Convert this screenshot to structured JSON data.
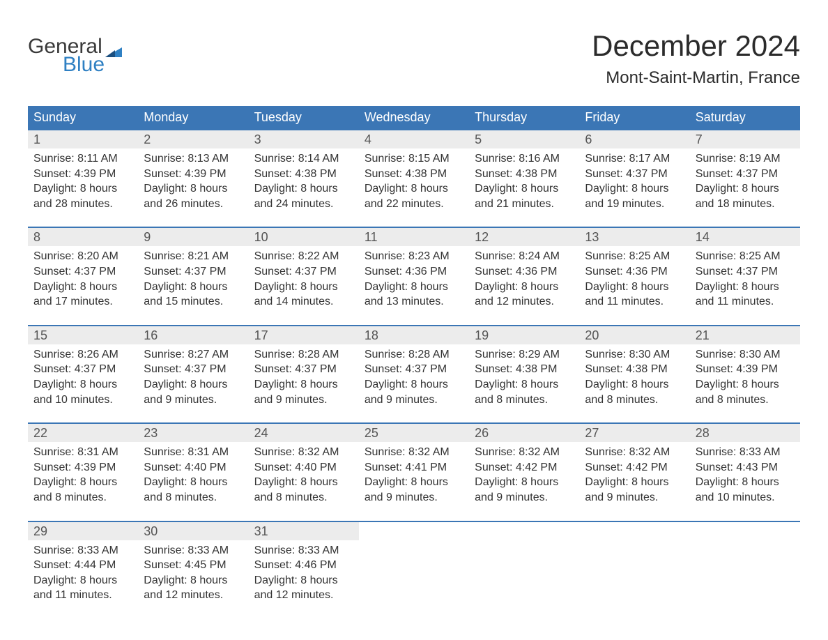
{
  "brand": {
    "word1": "General",
    "word2": "Blue",
    "brand_gray": "#3a3a3a",
    "brand_blue": "#2f80c3"
  },
  "header": {
    "month_title": "December 2024",
    "location": "Mont-Saint-Martin, France"
  },
  "colors": {
    "header_blue": "#3b76b5",
    "daynum_bg": "#ececec",
    "text": "#333333",
    "background": "#ffffff"
  },
  "weekdays": [
    "Sunday",
    "Monday",
    "Tuesday",
    "Wednesday",
    "Thursday",
    "Friday",
    "Saturday"
  ],
  "weeks": [
    [
      {
        "n": "1",
        "sunrise": "Sunrise: 8:11 AM",
        "sunset": "Sunset: 4:39 PM",
        "daylight": "Daylight: 8 hours and 28 minutes."
      },
      {
        "n": "2",
        "sunrise": "Sunrise: 8:13 AM",
        "sunset": "Sunset: 4:39 PM",
        "daylight": "Daylight: 8 hours and 26 minutes."
      },
      {
        "n": "3",
        "sunrise": "Sunrise: 8:14 AM",
        "sunset": "Sunset: 4:38 PM",
        "daylight": "Daylight: 8 hours and 24 minutes."
      },
      {
        "n": "4",
        "sunrise": "Sunrise: 8:15 AM",
        "sunset": "Sunset: 4:38 PM",
        "daylight": "Daylight: 8 hours and 22 minutes."
      },
      {
        "n": "5",
        "sunrise": "Sunrise: 8:16 AM",
        "sunset": "Sunset: 4:38 PM",
        "daylight": "Daylight: 8 hours and 21 minutes."
      },
      {
        "n": "6",
        "sunrise": "Sunrise: 8:17 AM",
        "sunset": "Sunset: 4:37 PM",
        "daylight": "Daylight: 8 hours and 19 minutes."
      },
      {
        "n": "7",
        "sunrise": "Sunrise: 8:19 AM",
        "sunset": "Sunset: 4:37 PM",
        "daylight": "Daylight: 8 hours and 18 minutes."
      }
    ],
    [
      {
        "n": "8",
        "sunrise": "Sunrise: 8:20 AM",
        "sunset": "Sunset: 4:37 PM",
        "daylight": "Daylight: 8 hours and 17 minutes."
      },
      {
        "n": "9",
        "sunrise": "Sunrise: 8:21 AM",
        "sunset": "Sunset: 4:37 PM",
        "daylight": "Daylight: 8 hours and 15 minutes."
      },
      {
        "n": "10",
        "sunrise": "Sunrise: 8:22 AM",
        "sunset": "Sunset: 4:37 PM",
        "daylight": "Daylight: 8 hours and 14 minutes."
      },
      {
        "n": "11",
        "sunrise": "Sunrise: 8:23 AM",
        "sunset": "Sunset: 4:36 PM",
        "daylight": "Daylight: 8 hours and 13 minutes."
      },
      {
        "n": "12",
        "sunrise": "Sunrise: 8:24 AM",
        "sunset": "Sunset: 4:36 PM",
        "daylight": "Daylight: 8 hours and 12 minutes."
      },
      {
        "n": "13",
        "sunrise": "Sunrise: 8:25 AM",
        "sunset": "Sunset: 4:36 PM",
        "daylight": "Daylight: 8 hours and 11 minutes."
      },
      {
        "n": "14",
        "sunrise": "Sunrise: 8:25 AM",
        "sunset": "Sunset: 4:37 PM",
        "daylight": "Daylight: 8 hours and 11 minutes."
      }
    ],
    [
      {
        "n": "15",
        "sunrise": "Sunrise: 8:26 AM",
        "sunset": "Sunset: 4:37 PM",
        "daylight": "Daylight: 8 hours and 10 minutes."
      },
      {
        "n": "16",
        "sunrise": "Sunrise: 8:27 AM",
        "sunset": "Sunset: 4:37 PM",
        "daylight": "Daylight: 8 hours and 9 minutes."
      },
      {
        "n": "17",
        "sunrise": "Sunrise: 8:28 AM",
        "sunset": "Sunset: 4:37 PM",
        "daylight": "Daylight: 8 hours and 9 minutes."
      },
      {
        "n": "18",
        "sunrise": "Sunrise: 8:28 AM",
        "sunset": "Sunset: 4:37 PM",
        "daylight": "Daylight: 8 hours and 9 minutes."
      },
      {
        "n": "19",
        "sunrise": "Sunrise: 8:29 AM",
        "sunset": "Sunset: 4:38 PM",
        "daylight": "Daylight: 8 hours and 8 minutes."
      },
      {
        "n": "20",
        "sunrise": "Sunrise: 8:30 AM",
        "sunset": "Sunset: 4:38 PM",
        "daylight": "Daylight: 8 hours and 8 minutes."
      },
      {
        "n": "21",
        "sunrise": "Sunrise: 8:30 AM",
        "sunset": "Sunset: 4:39 PM",
        "daylight": "Daylight: 8 hours and 8 minutes."
      }
    ],
    [
      {
        "n": "22",
        "sunrise": "Sunrise: 8:31 AM",
        "sunset": "Sunset: 4:39 PM",
        "daylight": "Daylight: 8 hours and 8 minutes."
      },
      {
        "n": "23",
        "sunrise": "Sunrise: 8:31 AM",
        "sunset": "Sunset: 4:40 PM",
        "daylight": "Daylight: 8 hours and 8 minutes."
      },
      {
        "n": "24",
        "sunrise": "Sunrise: 8:32 AM",
        "sunset": "Sunset: 4:40 PM",
        "daylight": "Daylight: 8 hours and 8 minutes."
      },
      {
        "n": "25",
        "sunrise": "Sunrise: 8:32 AM",
        "sunset": "Sunset: 4:41 PM",
        "daylight": "Daylight: 8 hours and 9 minutes."
      },
      {
        "n": "26",
        "sunrise": "Sunrise: 8:32 AM",
        "sunset": "Sunset: 4:42 PM",
        "daylight": "Daylight: 8 hours and 9 minutes."
      },
      {
        "n": "27",
        "sunrise": "Sunrise: 8:32 AM",
        "sunset": "Sunset: 4:42 PM",
        "daylight": "Daylight: 8 hours and 9 minutes."
      },
      {
        "n": "28",
        "sunrise": "Sunrise: 8:33 AM",
        "sunset": "Sunset: 4:43 PM",
        "daylight": "Daylight: 8 hours and 10 minutes."
      }
    ],
    [
      {
        "n": "29",
        "sunrise": "Sunrise: 8:33 AM",
        "sunset": "Sunset: 4:44 PM",
        "daylight": "Daylight: 8 hours and 11 minutes."
      },
      {
        "n": "30",
        "sunrise": "Sunrise: 8:33 AM",
        "sunset": "Sunset: 4:45 PM",
        "daylight": "Daylight: 8 hours and 12 minutes."
      },
      {
        "n": "31",
        "sunrise": "Sunrise: 8:33 AM",
        "sunset": "Sunset: 4:46 PM",
        "daylight": "Daylight: 8 hours and 12 minutes."
      },
      {
        "n": "",
        "empty": true
      },
      {
        "n": "",
        "empty": true
      },
      {
        "n": "",
        "empty": true
      },
      {
        "n": "",
        "empty": true
      }
    ]
  ]
}
